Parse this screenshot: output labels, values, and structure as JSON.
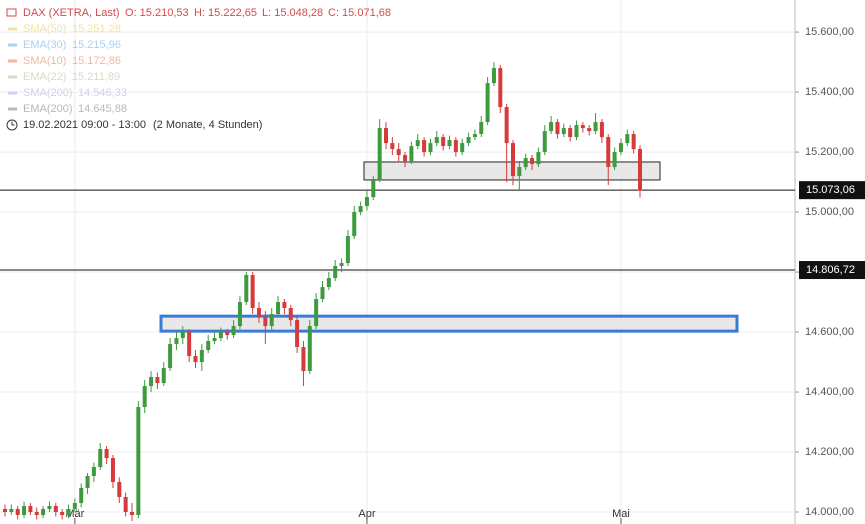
{
  "chart_data": {
    "type": "candlestick",
    "header": {
      "symbol": "DAX (XETRA, Last)",
      "open": "O: 15.210,53",
      "high": "H: 15.222,65",
      "low": "L: 15.048,28",
      "close": "C: 15.071,68",
      "period": "19.02.2021 09:00 - 13:00",
      "span": "(2 Monate, 4 Stunden)"
    },
    "legend": [
      {
        "name": "SMA(50)",
        "value": "15.251,28",
        "color": "#f3e3a0"
      },
      {
        "name": "EMA(30)",
        "value": "15.215,96",
        "color": "#a9d2f0"
      },
      {
        "name": "SMA(10)",
        "value": "15.172,86",
        "color": "#f4b6a0"
      },
      {
        "name": "EMA(22)",
        "value": "15.211,89",
        "color": "#d6dcc6"
      },
      {
        "name": "SMA(200)",
        "value": "14.546,33",
        "color": "#d2d0ee"
      },
      {
        "name": "EMA(200)",
        "value": "14.645,88",
        "color": "#b8b8b8"
      }
    ],
    "up_color": "#3d9a3d",
    "down_color": "#d63a3a",
    "categories": [
      null,
      null,
      null,
      null,
      null,
      null,
      null,
      null,
      null,
      null,
      null,
      "Mär",
      null,
      null,
      null,
      null,
      null,
      null,
      null,
      null,
      null,
      null,
      null,
      null,
      null,
      null,
      null,
      null,
      null,
      null,
      null,
      null,
      null,
      null,
      null,
      null,
      null,
      null,
      null,
      null,
      null,
      null,
      null,
      null,
      null,
      null,
      null,
      null,
      null,
      null,
      null,
      null,
      null,
      null,
      null,
      null,
      null,
      "Apr",
      null,
      null,
      null,
      null,
      null,
      null,
      null,
      null,
      null,
      null,
      null,
      null,
      null,
      null,
      null,
      null,
      null,
      null,
      null,
      null,
      null,
      null,
      null,
      null,
      null,
      null,
      null,
      null,
      null,
      null,
      null,
      null,
      null,
      null,
      null,
      null,
      null,
      null,
      null,
      "Mai",
      null,
      null,
      null
    ],
    "ohlc": [
      [
        14010,
        14025,
        13985,
        14000
      ],
      [
        14000,
        14025,
        13990,
        14010
      ],
      [
        14010,
        14020,
        13975,
        13990
      ],
      [
        13990,
        14035,
        13980,
        14020
      ],
      [
        14020,
        14030,
        13990,
        14000
      ],
      [
        14000,
        14015,
        13975,
        13990
      ],
      [
        13990,
        14020,
        13980,
        14010
      ],
      [
        14010,
        14035,
        14000,
        14020
      ],
      [
        14020,
        14030,
        13985,
        14000
      ],
      [
        14000,
        14010,
        13975,
        13990
      ],
      [
        13990,
        14025,
        13980,
        14010
      ],
      [
        14010,
        14045,
        14000,
        14030
      ],
      [
        14030,
        14095,
        14015,
        14080
      ],
      [
        14080,
        14130,
        14060,
        14120
      ],
      [
        14120,
        14165,
        14100,
        14150
      ],
      [
        14150,
        14230,
        14140,
        14210
      ],
      [
        14210,
        14220,
        14160,
        14180
      ],
      [
        14180,
        14190,
        14080,
        14100
      ],
      [
        14100,
        14115,
        14030,
        14050
      ],
      [
        14050,
        14065,
        13985,
        14000
      ],
      [
        14000,
        14030,
        13970,
        13990
      ],
      [
        13990,
        14370,
        13980,
        14350
      ],
      [
        14350,
        14440,
        14330,
        14420
      ],
      [
        14420,
        14470,
        14400,
        14450
      ],
      [
        14450,
        14465,
        14410,
        14430
      ],
      [
        14430,
        14500,
        14420,
        14480
      ],
      [
        14480,
        14580,
        14470,
        14560
      ],
      [
        14560,
        14600,
        14540,
        14580
      ],
      [
        14580,
        14620,
        14560,
        14600
      ],
      [
        14600,
        14610,
        14500,
        14520
      ],
      [
        14520,
        14540,
        14480,
        14500
      ],
      [
        14500,
        14560,
        14470,
        14540
      ],
      [
        14540,
        14590,
        14530,
        14570
      ],
      [
        14570,
        14600,
        14560,
        14580
      ],
      [
        14580,
        14615,
        14570,
        14600
      ],
      [
        14600,
        14610,
        14575,
        14590
      ],
      [
        14590,
        14640,
        14580,
        14620
      ],
      [
        14620,
        14720,
        14610,
        14700
      ],
      [
        14700,
        14800,
        14690,
        14790
      ],
      [
        14790,
        14800,
        14660,
        14680
      ],
      [
        14680,
        14700,
        14630,
        14650
      ],
      [
        14650,
        14670,
        14560,
        14620
      ],
      [
        14620,
        14680,
        14600,
        14660
      ],
      [
        14660,
        14720,
        14650,
        14700
      ],
      [
        14700,
        14710,
        14660,
        14680
      ],
      [
        14680,
        14690,
        14620,
        14640
      ],
      [
        14640,
        14650,
        14530,
        14550
      ],
      [
        14550,
        14570,
        14420,
        14470
      ],
      [
        14470,
        14640,
        14460,
        14620
      ],
      [
        14620,
        14730,
        14610,
        14710
      ],
      [
        14710,
        14770,
        14700,
        14750
      ],
      [
        14750,
        14800,
        14740,
        14780
      ],
      [
        14780,
        14840,
        14770,
        14820
      ],
      [
        14820,
        14845,
        14800,
        14830
      ],
      [
        14830,
        14940,
        14820,
        14920
      ],
      [
        14920,
        15020,
        14910,
        15000
      ],
      [
        15000,
        15035,
        14990,
        15020
      ],
      [
        15020,
        15070,
        15005,
        15050
      ],
      [
        15050,
        15120,
        15040,
        15110
      ],
      [
        15110,
        15310,
        15100,
        15280
      ],
      [
        15280,
        15300,
        15210,
        15230
      ],
      [
        15230,
        15250,
        15190,
        15210
      ],
      [
        15210,
        15230,
        15170,
        15190
      ],
      [
        15190,
        15200,
        15150,
        15170
      ],
      [
        15170,
        15235,
        15160,
        15220
      ],
      [
        15220,
        15260,
        15210,
        15240
      ],
      [
        15240,
        15250,
        15185,
        15200
      ],
      [
        15200,
        15245,
        15190,
        15230
      ],
      [
        15230,
        15270,
        15220,
        15250
      ],
      [
        15250,
        15260,
        15205,
        15220
      ],
      [
        15220,
        15255,
        15210,
        15240
      ],
      [
        15240,
        15250,
        15185,
        15200
      ],
      [
        15200,
        15245,
        15190,
        15230
      ],
      [
        15230,
        15265,
        15220,
        15250
      ],
      [
        15250,
        15275,
        15240,
        15260
      ],
      [
        15260,
        15320,
        15250,
        15300
      ],
      [
        15300,
        15450,
        15290,
        15430
      ],
      [
        15430,
        15500,
        15420,
        15480
      ],
      [
        15480,
        15490,
        15330,
        15350
      ],
      [
        15350,
        15360,
        15100,
        15230
      ],
      [
        15230,
        15240,
        15090,
        15120
      ],
      [
        15120,
        15165,
        15070,
        15150
      ],
      [
        15150,
        15195,
        15140,
        15180
      ],
      [
        15180,
        15190,
        15140,
        15160
      ],
      [
        15160,
        15215,
        15150,
        15200
      ],
      [
        15200,
        15290,
        15190,
        15270
      ],
      [
        15270,
        15320,
        15260,
        15300
      ],
      [
        15300,
        15310,
        15245,
        15260
      ],
      [
        15260,
        15295,
        15250,
        15280
      ],
      [
        15280,
        15290,
        15235,
        15250
      ],
      [
        15250,
        15305,
        15240,
        15290
      ],
      [
        15290,
        15300,
        15265,
        15280
      ],
      [
        15280,
        15290,
        15255,
        15270
      ],
      [
        15270,
        15330,
        15260,
        15300
      ],
      [
        15300,
        15310,
        15230,
        15250
      ],
      [
        15250,
        15260,
        15090,
        15150
      ],
      [
        15150,
        15215,
        15140,
        15200
      ],
      [
        15200,
        15245,
        15190,
        15230
      ],
      [
        15230,
        15275,
        15220,
        15260
      ],
      [
        15260,
        15270,
        15195,
        15210
      ],
      [
        15210.53,
        15222.65,
        15048.28,
        15071.68
      ]
    ],
    "ylim": [
      13960,
      15707
    ],
    "yticks": [
      {
        "value": 14000,
        "label": "14.000,00"
      },
      {
        "value": 14200,
        "label": "14.200,00"
      },
      {
        "value": 14400,
        "label": "14.400,00"
      },
      {
        "value": 14600,
        "label": "14.600,00"
      },
      {
        "value": 14800,
        "label": "14.800,00"
      },
      {
        "value": 15000,
        "label": "15.000,00"
      },
      {
        "value": 15200,
        "label": "15.200,00"
      },
      {
        "value": 15400,
        "label": "15.400,00"
      },
      {
        "value": 15600,
        "label": "15.600,00"
      }
    ],
    "hlines": [
      {
        "value": 15073.06,
        "label": "15.073,06"
      },
      {
        "value": 14806.72,
        "label": "14.806,72"
      }
    ],
    "zones": [
      {
        "from": 15167,
        "to": 15107,
        "stroke": "#222222"
      },
      {
        "from": 14653,
        "to": 14603,
        "stroke": "#3a7bd5"
      }
    ],
    "grid": true
  }
}
